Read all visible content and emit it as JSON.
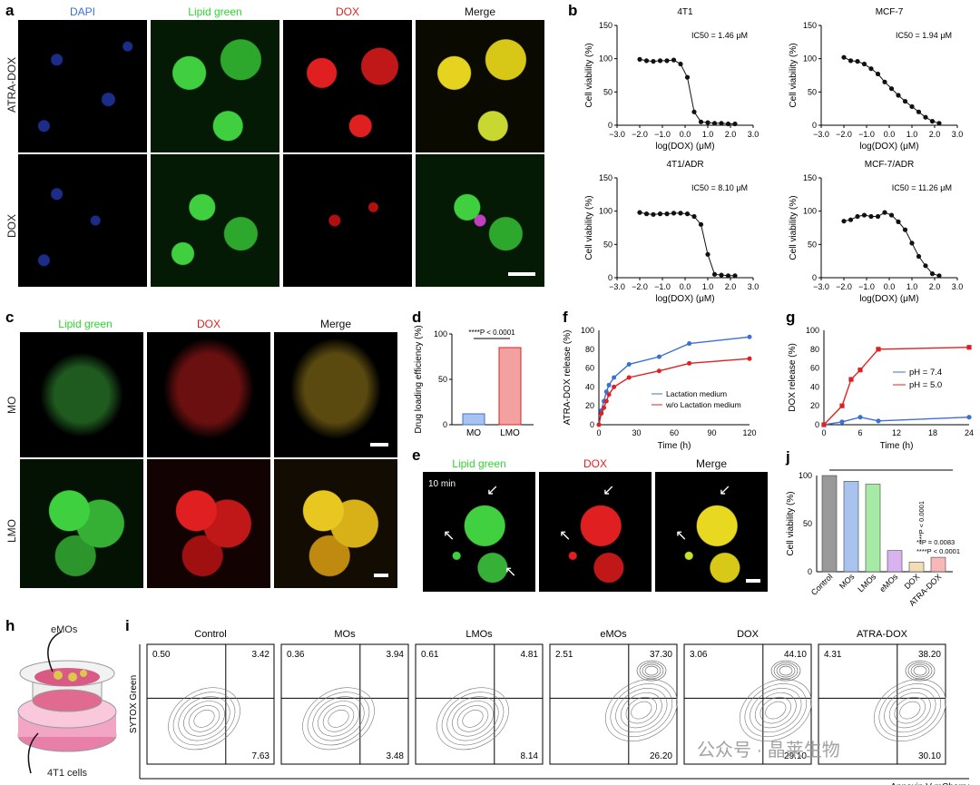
{
  "panel_letters": {
    "a": "a",
    "b": "b",
    "c": "c",
    "d": "d",
    "e": "e",
    "f": "f",
    "g": "g",
    "h": "h",
    "i": "i",
    "j": "j"
  },
  "colors": {
    "blue": "#3b6fd8",
    "red": "#e02020",
    "green": "#2ed62e",
    "black": "#111111",
    "pink": "#f3a0a0"
  },
  "panel_a": {
    "channels": [
      "DAPI",
      "Lipid green",
      "DOX",
      "Merge"
    ],
    "rows": [
      "ATRA-DOX",
      "DOX"
    ]
  },
  "panel_c": {
    "channels": [
      "Lipid green",
      "DOX",
      "Merge"
    ],
    "rows": [
      "MO",
      "LMO"
    ]
  },
  "panel_e": {
    "channels": [
      "Lipid green",
      "DOX",
      "Merge"
    ],
    "timestamp": "10 min"
  },
  "panel_h": {
    "top_label": "eMOs",
    "bottom_label": "4T1 cells"
  },
  "chart_data": [
    {
      "id": "b1",
      "type": "scatter",
      "title": "4T1",
      "ic50": "IC50 = 1.46 μM",
      "xlabel": "log(DOX) (μM)",
      "ylabel": "Cell viability (%)",
      "xlim": [
        -3,
        3
      ],
      "ylim": [
        0,
        150
      ],
      "x": [
        -2.0,
        -1.7,
        -1.4,
        -1.1,
        -0.8,
        -0.5,
        -0.2,
        0.1,
        0.4,
        0.7,
        1.0,
        1.3,
        1.6,
        1.9,
        2.2
      ],
      "y": [
        99,
        97,
        96,
        97,
        97,
        98,
        92,
        72,
        20,
        5,
        4,
        3,
        3,
        2,
        2
      ]
    },
    {
      "id": "b2",
      "type": "scatter",
      "title": "MCF-7",
      "ic50": "IC50 = 1.94 μM",
      "xlabel": "log(DOX) (μM)",
      "ylabel": "Cell viability (%)",
      "xlim": [
        -3,
        3
      ],
      "ylim": [
        0,
        150
      ],
      "x": [
        -2.0,
        -1.7,
        -1.4,
        -1.1,
        -0.8,
        -0.5,
        -0.2,
        0.1,
        0.4,
        0.7,
        1.0,
        1.3,
        1.6,
        1.9,
        2.2
      ],
      "y": [
        102,
        97,
        96,
        92,
        85,
        77,
        65,
        55,
        45,
        36,
        28,
        20,
        12,
        6,
        3
      ]
    },
    {
      "id": "b3",
      "type": "scatter",
      "title": "4T1/ADR",
      "ic50": "IC50 = 8.10 μM",
      "xlabel": "log(DOX) (μM)",
      "ylabel": "Cell viability (%)",
      "xlim": [
        -3,
        3
      ],
      "ylim": [
        0,
        150
      ],
      "x": [
        -2.0,
        -1.7,
        -1.4,
        -1.1,
        -0.8,
        -0.5,
        -0.2,
        0.1,
        0.4,
        0.7,
        1.0,
        1.3,
        1.6,
        1.9,
        2.2
      ],
      "y": [
        98,
        96,
        95,
        96,
        96,
        97,
        97,
        96,
        92,
        80,
        35,
        5,
        4,
        3,
        3
      ]
    },
    {
      "id": "b4",
      "type": "scatter",
      "title": "MCF-7/ADR",
      "ic50": "IC50 = 11.26 μM",
      "xlabel": "log(DOX) (μM)",
      "ylabel": "Cell viability (%)",
      "xlim": [
        -3,
        3
      ],
      "ylim": [
        0,
        150
      ],
      "x": [
        -2.0,
        -1.7,
        -1.4,
        -1.1,
        -0.8,
        -0.5,
        -0.2,
        0.1,
        0.4,
        0.7,
        1.0,
        1.3,
        1.6,
        1.9,
        2.2
      ],
      "y": [
        85,
        87,
        92,
        94,
        92,
        92,
        98,
        94,
        84,
        72,
        52,
        32,
        18,
        6,
        3
      ]
    },
    {
      "id": "d",
      "type": "bar",
      "categories": [
        "MO",
        "LMO"
      ],
      "values": [
        12,
        85
      ],
      "ylabel": "Drug loading efficiency (%)",
      "ylim": [
        0,
        100
      ],
      "annotation": "****P < 0.0001"
    },
    {
      "id": "f",
      "type": "line",
      "xlabel": "Time (h)",
      "ylabel": "ATRA-DOX release (%)",
      "xlim": [
        0,
        120
      ],
      "ylim": [
        0,
        100
      ],
      "series": [
        {
          "name": "Lactation medium",
          "x": [
            0,
            2,
            4,
            6,
            8,
            12,
            24,
            48,
            72,
            120
          ],
          "y": [
            0,
            15,
            25,
            35,
            42,
            50,
            64,
            72,
            86,
            93
          ]
        },
        {
          "name": "w/o Lactation medium",
          "x": [
            0,
            2,
            4,
            6,
            8,
            12,
            24,
            48,
            72,
            120
          ],
          "y": [
            0,
            12,
            18,
            25,
            32,
            40,
            50,
            57,
            65,
            70
          ]
        }
      ]
    },
    {
      "id": "g",
      "type": "line",
      "xlabel": "Time (h)",
      "ylabel": "DOX release (%)",
      "xlim": [
        0,
        24
      ],
      "ylim": [
        0,
        100
      ],
      "series": [
        {
          "name": "pH = 7.4",
          "x": [
            0,
            3,
            6,
            9,
            24
          ],
          "y": [
            0,
            3,
            8,
            4,
            8
          ]
        },
        {
          "name": "pH = 5.0",
          "x": [
            0,
            3,
            4.5,
            6,
            9,
            24
          ],
          "y": [
            0,
            20,
            48,
            58,
            80,
            82
          ]
        }
      ]
    },
    {
      "id": "j",
      "type": "bar",
      "categories": [
        "Control",
        "MOs",
        "LMOs",
        "eMOs",
        "DOX",
        "ATRA-DOX"
      ],
      "values": [
        100,
        94,
        91,
        22,
        10,
        15
      ],
      "ylabel": "Cell viability (%)",
      "ylim": [
        0,
        100
      ],
      "annotations": [
        "****P < 0.0001",
        "**P = 0.0083",
        "****P < 0.0001"
      ]
    },
    {
      "id": "i",
      "type": "scatter",
      "xlabel": "Annexin V-mCherry",
      "ylabel": "SYTOX Green",
      "panels": [
        {
          "title": "Control",
          "q": [
            "0.50",
            "3.42",
            "7.63"
          ]
        },
        {
          "title": "MOs",
          "q": [
            "0.36",
            "3.94",
            "3.48"
          ]
        },
        {
          "title": "LMOs",
          "q": [
            "0.61",
            "4.81",
            "8.14"
          ]
        },
        {
          "title": "eMOs",
          "q": [
            "2.51",
            "37.30",
            "26.20"
          ]
        },
        {
          "title": "DOX",
          "q": [
            "3.06",
            "44.10",
            "29.10"
          ]
        },
        {
          "title": "ATRA-DOX",
          "q": [
            "4.31",
            "38.20",
            "30.10"
          ]
        }
      ]
    }
  ],
  "watermark": "公众号 · 晶莱生物"
}
